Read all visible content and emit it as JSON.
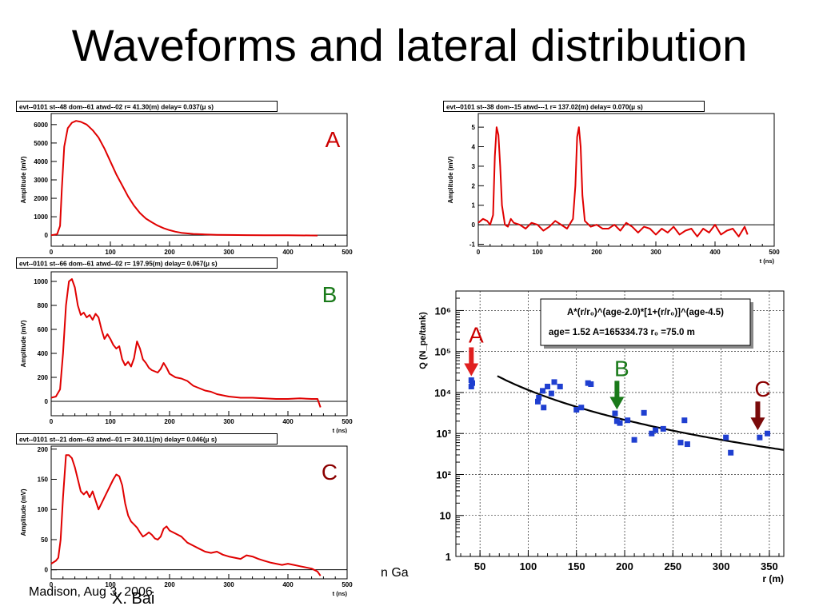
{
  "slide": {
    "title": "Waveforms and lateral distribution",
    "footer_left": "Madison, Aug 3, 2006",
    "footer_author": "X. Bai",
    "footer_mid": "n Ga"
  },
  "colors": {
    "curve": "#e00000",
    "blue_points": "#1f3fd0",
    "arrow_A": "#e02020",
    "arrow_B": "#1a7a1a",
    "arrow_C": "#7a0a0a",
    "letter_A": "#cc0000",
    "letter_B": "#1a7a1a",
    "letter_C": "#8b0000"
  },
  "chart_data": [
    {
      "id": "A-left",
      "type": "line",
      "header": "evt--0101   st--48   dom--61   atwd--02   r=  41.30(m)   delay=   0.037(μ s)",
      "letter": "A",
      "ylabel": "Amplitude (mV)",
      "xlabel": "",
      "xlim": [
        0,
        500
      ],
      "ylim": [
        -600,
        6600
      ],
      "xticks": [
        0,
        100,
        200,
        300,
        400,
        500
      ],
      "yticks": [
        0,
        1000,
        2000,
        3000,
        4000,
        5000,
        6000
      ],
      "zero_line": true,
      "x": [
        0,
        10,
        15,
        18,
        22,
        28,
        35,
        42,
        50,
        60,
        70,
        80,
        90,
        100,
        110,
        120,
        130,
        140,
        150,
        160,
        170,
        180,
        190,
        200,
        210,
        220,
        240,
        260,
        280,
        300,
        330,
        360,
        400,
        450
      ],
      "y": [
        0,
        50,
        500,
        2500,
        4800,
        5800,
        6100,
        6200,
        6150,
        6000,
        5700,
        5300,
        4700,
        4000,
        3300,
        2700,
        2100,
        1600,
        1200,
        900,
        700,
        520,
        380,
        270,
        190,
        130,
        70,
        40,
        20,
        10,
        5,
        0,
        0,
        -20
      ]
    },
    {
      "id": "A-right",
      "type": "line",
      "header": "evt--0101   st--38   dom--15   atwd---1   r= 137.02(m)   delay=   0.070(μ s)",
      "ylabel": "Amplitude (mV)",
      "xlabel": "t (ns)",
      "xlim": [
        0,
        500
      ],
      "ylim": [
        -1.1,
        5.7
      ],
      "xticks": [
        0,
        100,
        200,
        300,
        400,
        500
      ],
      "yticks": [
        -1,
        0,
        1,
        2,
        3,
        4,
        5
      ],
      "zero_line": true,
      "x": [
        0,
        8,
        15,
        20,
        25,
        28,
        31,
        34,
        37,
        40,
        45,
        50,
        55,
        60,
        70,
        80,
        90,
        100,
        110,
        120,
        130,
        140,
        150,
        160,
        164,
        167,
        170,
        173,
        176,
        180,
        190,
        200,
        210,
        220,
        230,
        240,
        250,
        260,
        270,
        280,
        290,
        300,
        310,
        320,
        330,
        340,
        350,
        360,
        370,
        380,
        390,
        400,
        410,
        420,
        430,
        440,
        450,
        455
      ],
      "y": [
        0.1,
        0.3,
        0.2,
        0.0,
        0.5,
        3.5,
        5.0,
        4.6,
        3.0,
        1.0,
        0.0,
        -0.1,
        0.3,
        0.1,
        0.0,
        -0.2,
        0.1,
        0.0,
        -0.3,
        -0.1,
        0.2,
        0.0,
        -0.2,
        0.3,
        2.0,
        4.5,
        5.0,
        4.0,
        1.5,
        0.2,
        -0.1,
        0.0,
        -0.2,
        -0.2,
        0.0,
        -0.3,
        0.1,
        -0.1,
        -0.4,
        -0.1,
        -0.2,
        -0.5,
        -0.2,
        -0.4,
        -0.1,
        -0.5,
        -0.3,
        -0.2,
        -0.6,
        -0.2,
        -0.4,
        0.0,
        -0.5,
        -0.3,
        -0.2,
        -0.6,
        -0.1,
        -0.5
      ]
    },
    {
      "id": "B",
      "type": "line",
      "header": "evt--0101   st--66   dom--61   atwd--02   r= 197.95(m)   delay=   0.067(μ s)",
      "letter": "B",
      "ylabel": "Amplitude (mV)",
      "xlabel": "t (ns)",
      "xlim": [
        0,
        500
      ],
      "ylim": [
        -120,
        1080
      ],
      "xticks": [
        0,
        100,
        200,
        300,
        400,
        500
      ],
      "yticks": [
        0,
        200,
        400,
        600,
        800,
        1000
      ],
      "zero_line": true,
      "x": [
        0,
        8,
        15,
        20,
        25,
        30,
        35,
        40,
        45,
        50,
        55,
        60,
        65,
        70,
        75,
        80,
        85,
        90,
        95,
        100,
        105,
        110,
        115,
        120,
        125,
        130,
        135,
        140,
        145,
        150,
        155,
        160,
        165,
        170,
        180,
        185,
        190,
        195,
        200,
        210,
        220,
        230,
        240,
        250,
        260,
        270,
        280,
        290,
        300,
        320,
        340,
        360,
        380,
        400,
        420,
        440,
        450,
        455
      ],
      "y": [
        30,
        40,
        100,
        400,
        800,
        1000,
        1020,
        950,
        800,
        720,
        740,
        700,
        720,
        680,
        730,
        700,
        600,
        520,
        560,
        520,
        470,
        440,
        460,
        350,
        300,
        330,
        290,
        360,
        500,
        440,
        350,
        320,
        280,
        260,
        240,
        270,
        320,
        280,
        230,
        200,
        190,
        170,
        130,
        110,
        90,
        80,
        60,
        50,
        40,
        30,
        30,
        25,
        20,
        20,
        25,
        20,
        20,
        -50
      ]
    },
    {
      "id": "C",
      "type": "line",
      "header": "evt--0101   st--21   dom--63   atwd--01   r= 340.11(m)   delay=   0.046(μ s)",
      "letter": "C",
      "ylabel": "Amplitude (mV)",
      "xlabel": "t (ns)",
      "xlim": [
        0,
        500
      ],
      "ylim": [
        -15,
        205
      ],
      "xticks": [
        0,
        100,
        200,
        300,
        400,
        500
      ],
      "yticks": [
        0,
        50,
        100,
        150,
        200
      ],
      "zero_line": true,
      "x": [
        0,
        8,
        12,
        16,
        20,
        25,
        30,
        35,
        40,
        45,
        50,
        55,
        60,
        65,
        70,
        75,
        80,
        85,
        90,
        95,
        100,
        105,
        110,
        115,
        120,
        125,
        130,
        135,
        140,
        145,
        150,
        155,
        160,
        165,
        170,
        175,
        180,
        185,
        190,
        195,
        200,
        210,
        220,
        230,
        240,
        250,
        260,
        270,
        280,
        290,
        300,
        310,
        320,
        330,
        340,
        350,
        360,
        370,
        380,
        390,
        400,
        410,
        420,
        430,
        440,
        450,
        455
      ],
      "y": [
        10,
        15,
        20,
        50,
        120,
        190,
        190,
        185,
        170,
        150,
        130,
        125,
        130,
        120,
        130,
        115,
        100,
        110,
        120,
        130,
        140,
        150,
        158,
        155,
        140,
        110,
        90,
        80,
        75,
        70,
        62,
        55,
        58,
        62,
        58,
        52,
        50,
        55,
        68,
        72,
        65,
        60,
        55,
        45,
        40,
        35,
        30,
        28,
        30,
        25,
        22,
        20,
        18,
        24,
        22,
        18,
        15,
        12,
        10,
        8,
        10,
        8,
        6,
        4,
        2,
        -3,
        -10
      ]
    },
    {
      "id": "lateral",
      "type": "scatter",
      "ylabel": "Q (N_pe/tank)",
      "xlabel": "r (m)",
      "yscale": "log",
      "xlim": [
        25,
        365
      ],
      "ylim": [
        1,
        3000000
      ],
      "xticks": [
        50,
        100,
        150,
        200,
        250,
        300,
        350
      ],
      "ytick_labels": [
        "1",
        "10",
        "10²",
        "10³",
        "10⁴",
        "10⁵",
        "10⁶"
      ],
      "ytick_values": [
        1,
        10,
        100,
        1000,
        10000,
        100000,
        1000000
      ],
      "grid": true,
      "fit_box": {
        "formula": "A*(r/r₀)^(age-2.0)*[1+(r/r₀)]^(age-4.5)",
        "params": "age=   1.52 A=165334.73 r₀ =75.0 m"
      },
      "fit": {
        "age": 1.52,
        "A": 165334.73,
        "r0": 75.0,
        "x_range": [
          68,
          365
        ]
      },
      "points": {
        "x": [
          41,
          42,
          41,
          110,
          111,
          115,
          116,
          120,
          124,
          127,
          133,
          150,
          155,
          162,
          165,
          190,
          192,
          195,
          203,
          210,
          220,
          228,
          232,
          240,
          258,
          262,
          265,
          305,
          310,
          340,
          348
        ],
        "y": [
          14000,
          17000,
          20000,
          6000,
          7500,
          11000,
          4300,
          14000,
          9500,
          18000,
          14000,
          3800,
          4300,
          17000,
          16000,
          3100,
          2000,
          1800,
          2100,
          700,
          3200,
          1000,
          1200,
          1300,
          600,
          2100,
          550,
          800,
          340,
          800,
          1000
        ]
      },
      "arrows": [
        {
          "label": "A",
          "x": 41,
          "y": 21000
        },
        {
          "label": "B",
          "x": 192,
          "y": 3200
        },
        {
          "label": "C",
          "x": 338,
          "y": 1000
        }
      ]
    }
  ]
}
